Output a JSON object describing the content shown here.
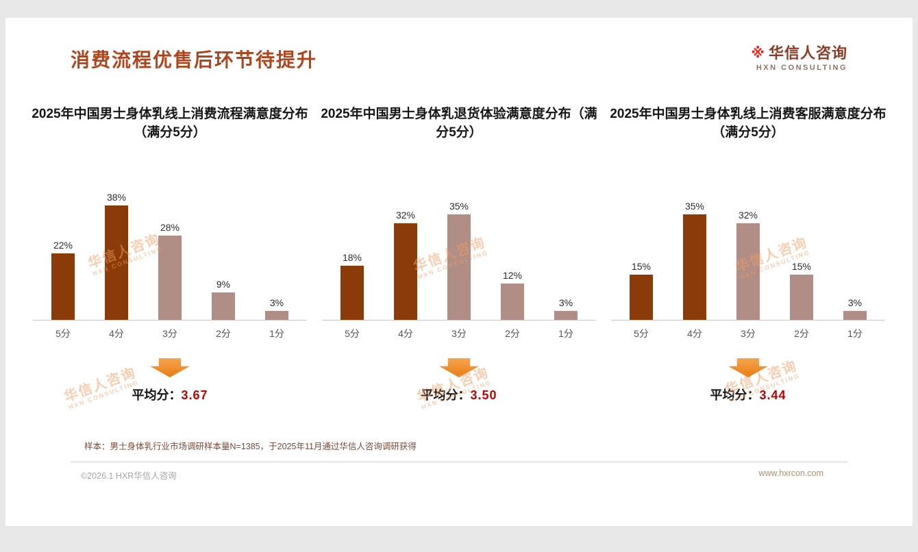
{
  "slide": {
    "title": "消费流程优售后环节待提升",
    "logo": {
      "mark": "※",
      "name": "华信人咨询",
      "subtitle": "HXN CONSULTING"
    },
    "watermark": {
      "line1": "华信人咨询",
      "line2": "HXN CONSULTING"
    },
    "footnote": "样本：男士身体乳行业市场调研样本量N=1385，于2025年11月通过华信人咨询调研获得",
    "footer": {
      "left": "©2026.1 HXR华信人咨询",
      "right": "www.hxrcon.com"
    }
  },
  "colors": {
    "accent": "#b0451c",
    "dark_bar": "#8a3b08",
    "light_bar": "#b18e85",
    "arrow": "#ee8a2e",
    "average_red": "#c00000"
  },
  "chart_data": [
    {
      "type": "bar",
      "title": "2025年中国男士身体乳线上消费流程满意度分布（满分5分）",
      "categories": [
        "5分",
        "4分",
        "3分",
        "2分",
        "1分"
      ],
      "values": [
        22,
        38,
        28,
        9,
        3
      ],
      "unit": "%",
      "palette": [
        "dark",
        "dark",
        "light",
        "light",
        "light"
      ],
      "ylim": [
        0,
        40
      ],
      "average_label": "平均分：",
      "average": "3.67"
    },
    {
      "type": "bar",
      "title": "2025年中国男士身体乳退货体验满意度分布（满分5分）",
      "categories": [
        "5分",
        "4分",
        "3分",
        "2分",
        "1分"
      ],
      "values": [
        18,
        32,
        35,
        12,
        3
      ],
      "unit": "%",
      "palette": [
        "dark",
        "dark",
        "light",
        "light",
        "light"
      ],
      "ylim": [
        0,
        40
      ],
      "average_label": "平均分：",
      "average": "3.50"
    },
    {
      "type": "bar",
      "title": "2025年中国男士身体乳线上消费客服满意度分布（满分5分）",
      "categories": [
        "5分",
        "4分",
        "3分",
        "2分",
        "1分"
      ],
      "values": [
        15,
        35,
        32,
        15,
        3
      ],
      "unit": "%",
      "palette": [
        "dark",
        "dark",
        "light",
        "light",
        "light"
      ],
      "ylim": [
        0,
        40
      ],
      "average_label": "平均分：",
      "average": "3.44"
    }
  ]
}
